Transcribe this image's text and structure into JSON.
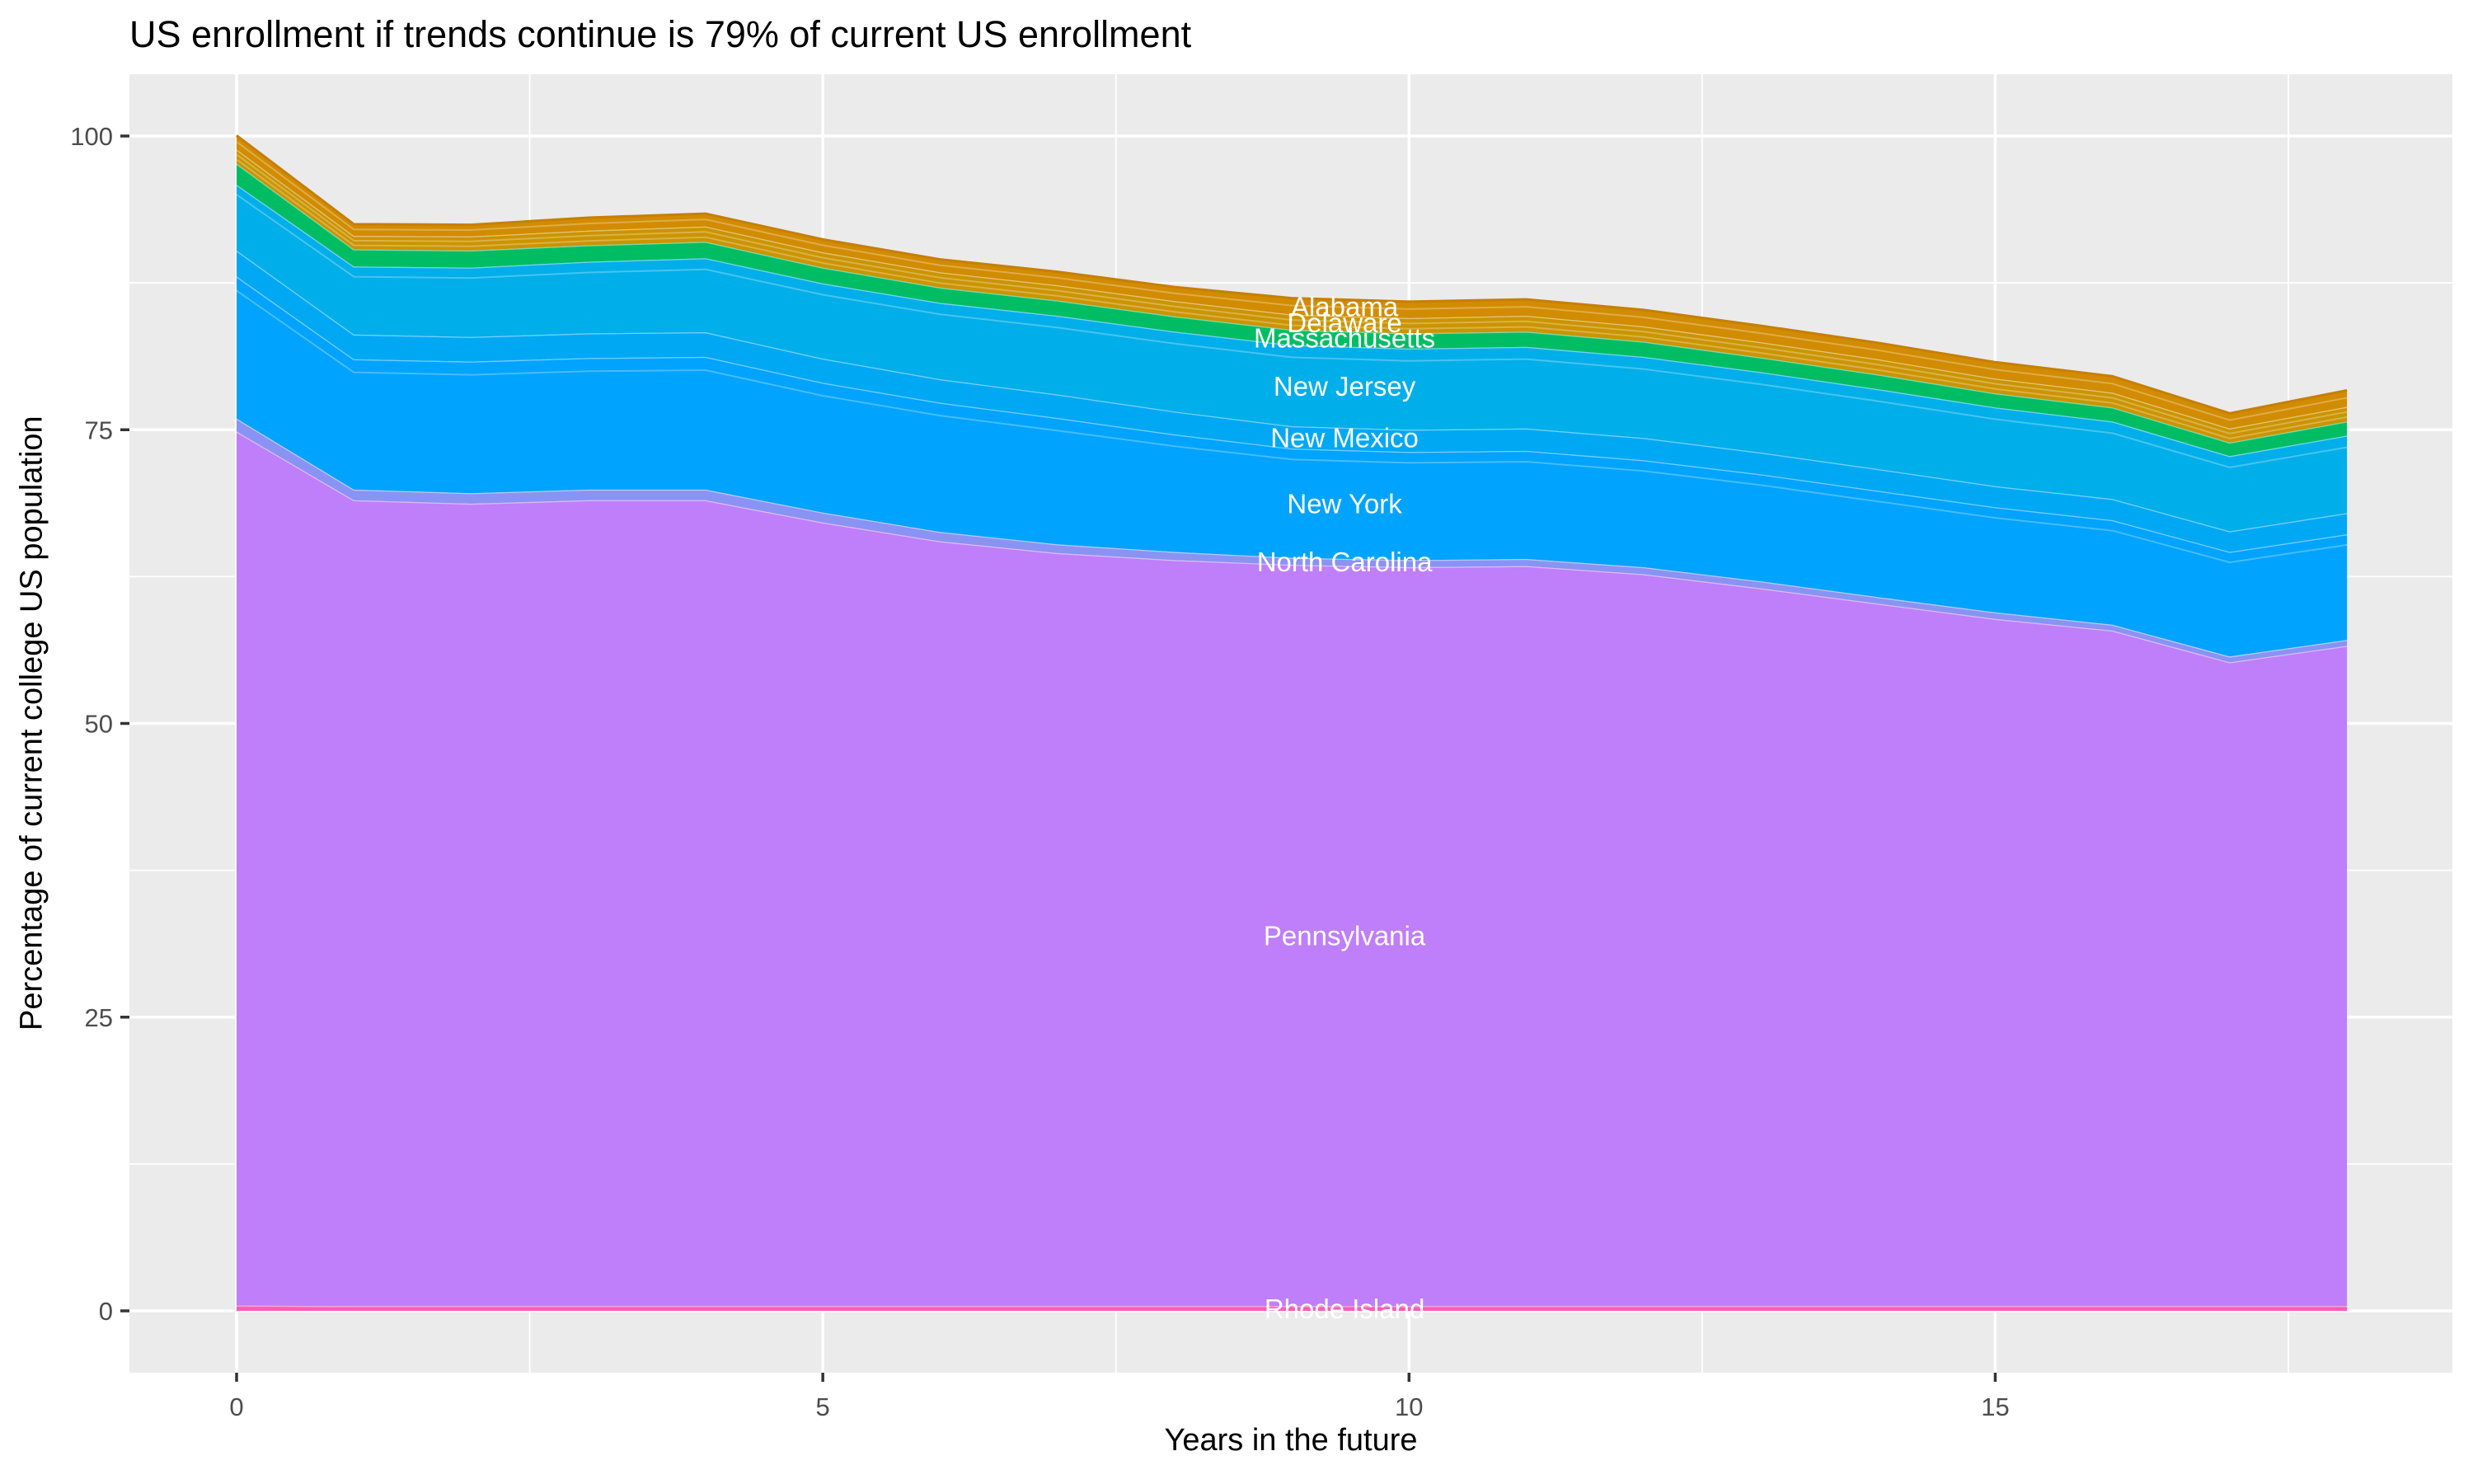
{
  "title": "US enrollment if trends continue is 79% of current US enrollment",
  "axes": {
    "x": {
      "label": "Years in the future",
      "ticks": [
        0,
        5,
        10,
        15
      ],
      "range": [
        0,
        18
      ]
    },
    "y": {
      "label": "Percentage of current college US population",
      "ticks": [
        0,
        25,
        50,
        75,
        100
      ],
      "range": [
        0,
        100
      ]
    }
  },
  "colors": {
    "panel_bg": "#EBEBEB",
    "grid": "#FFFFFF",
    "tick_mark": "#333333",
    "tick_label": "#4D4D4D",
    "area_label_text": "#FFFFFF",
    "title_text": "#000000"
  },
  "chart_data": {
    "type": "area",
    "stacked": true,
    "stack_order": "bottom-to-top",
    "title": "US enrollment if trends continue is 79% of current US enrollment",
    "xlabel": "Years in the future",
    "ylabel": "Percentage of current college US population",
    "xlim": [
      0,
      18
    ],
    "ylim": [
      0,
      100
    ],
    "grid": true,
    "legend_position": "labels-inside-areas",
    "label_x_year": 9.45,
    "x": [
      0,
      1,
      2,
      3,
      4,
      5,
      6,
      7,
      8,
      9,
      10,
      11,
      12,
      13,
      14,
      15,
      16,
      17,
      18
    ],
    "series": [
      {
        "name": "Rhode Island",
        "color": "#FC5CB4",
        "values": [
          0.45,
          0.4,
          0.4,
          0.4,
          0.4,
          0.4,
          0.4,
          0.4,
          0.4,
          0.4,
          0.4,
          0.4,
          0.4,
          0.4,
          0.4,
          0.4,
          0.4,
          0.4,
          0.4
        ]
      },
      {
        "name": "Pennsylvania",
        "color": "#BF7EFA",
        "values": [
          74.4,
          68.6,
          68.3,
          68.6,
          68.6,
          66.7,
          65.1,
          64.1,
          63.5,
          63.1,
          62.9,
          63.0,
          62.3,
          61.1,
          59.8,
          58.5,
          57.5,
          54.8,
          56.2
        ]
      },
      {
        "name": "North Carolina",
        "color": "#8993F4",
        "values": [
          1.1,
          0.9,
          0.9,
          0.9,
          0.9,
          0.85,
          0.8,
          0.75,
          0.7,
          0.6,
          0.6,
          0.6,
          0.6,
          0.6,
          0.55,
          0.55,
          0.5,
          0.5,
          0.5
        ]
      },
      {
        "name": "New York",
        "color": "#00A3FE",
        "values": [
          12.1,
          11.1,
          11.2,
          11.2,
          11.3,
          11.05,
          11.0,
          10.75,
          10.0,
          9.3,
          9.2,
          9.2,
          9.1,
          9.1,
          9.05,
          8.95,
          8.9,
          8.9,
          9.0
        ]
      },
      {
        "name": "New Mexico",
        "color": "#00A8F4",
        "values": [
          2.2,
          2.1,
          2.1,
          2.1,
          2.1,
          2.05,
          2.0,
          2.0,
          1.95,
          1.9,
          1.9,
          1.9,
          1.9,
          1.85,
          1.85,
          1.8,
          1.8,
          1.75,
          1.8
        ]
      },
      {
        "name": "New Jersey",
        "color": "#00AEE9",
        "values": [
          5.6,
          5.8,
          5.9,
          6.1,
          6.3,
          6.4,
          6.5,
          6.7,
          6.8,
          6.9,
          6.9,
          6.95,
          6.9,
          6.85,
          6.8,
          6.7,
          6.6,
          6.4,
          6.6
        ]
      },
      {
        "name": "Massachusetts",
        "color": "#00BD64",
        "values": [
          1.8,
          1.45,
          1.45,
          1.4,
          1.4,
          1.35,
          1.3,
          1.3,
          1.3,
          1.3,
          1.3,
          1.3,
          1.3,
          1.25,
          1.25,
          1.2,
          1.2,
          1.15,
          1.2
        ]
      },
      {
        "name": "Delaware",
        "color": "#CB9400",
        "values": [
          1.2,
          1.15,
          1.2,
          1.25,
          1.3,
          1.3,
          1.3,
          1.3,
          1.3,
          1.3,
          1.3,
          1.35,
          1.3,
          1.3,
          1.3,
          1.25,
          1.25,
          1.2,
          1.25
        ]
      },
      {
        "name": "Alabama",
        "color": "#D28C00",
        "values": [
          1.2,
          1.0,
          1.0,
          1.1,
          1.1,
          1.1,
          1.1,
          1.15,
          1.2,
          1.4,
          1.4,
          1.4,
          1.4,
          1.4,
          1.4,
          1.4,
          1.4,
          1.3,
          1.4
        ]
      }
    ]
  }
}
